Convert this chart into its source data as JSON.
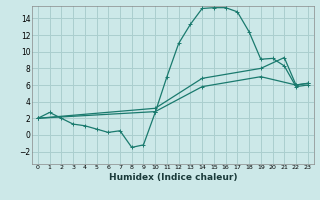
{
  "xlabel": "Humidex (Indice chaleur)",
  "bg_color": "#cce8e8",
  "grid_color": "#aacece",
  "line_color": "#1a7a6e",
  "xlim": [
    -0.5,
    23.5
  ],
  "ylim": [
    -3.5,
    15.5
  ],
  "xticks": [
    0,
    1,
    2,
    3,
    4,
    5,
    6,
    7,
    8,
    9,
    10,
    11,
    12,
    13,
    14,
    15,
    16,
    17,
    18,
    19,
    20,
    21,
    22,
    23
  ],
  "yticks": [
    -2,
    0,
    2,
    4,
    6,
    8,
    10,
    12,
    14
  ],
  "line1_x": [
    0,
    1,
    2,
    3,
    4,
    5,
    6,
    7,
    8,
    9,
    10,
    11,
    12,
    13,
    14,
    15,
    16,
    17,
    18,
    19,
    20,
    21,
    22,
    23
  ],
  "line1_y": [
    2.0,
    2.7,
    2.0,
    1.3,
    1.1,
    0.7,
    0.3,
    0.5,
    -1.5,
    -1.2,
    2.7,
    7.0,
    11.0,
    13.3,
    15.2,
    15.3,
    15.3,
    14.8,
    12.4,
    9.1,
    9.2,
    8.3,
    5.8,
    6.0
  ],
  "line2_x": [
    0,
    10,
    14,
    19,
    21,
    22,
    23
  ],
  "line2_y": [
    2.0,
    3.2,
    6.8,
    8.0,
    9.3,
    6.0,
    6.2
  ],
  "line3_x": [
    0,
    10,
    14,
    19,
    22,
    23
  ],
  "line3_y": [
    2.0,
    2.8,
    5.8,
    7.0,
    6.0,
    6.2
  ]
}
